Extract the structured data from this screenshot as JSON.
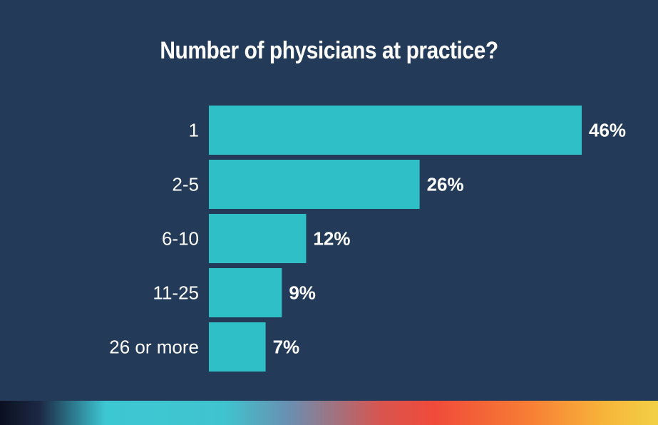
{
  "chart_data": {
    "type": "bar",
    "orientation": "horizontal",
    "title": "Number of physicians at practice?",
    "categories": [
      "1",
      "2-5",
      "6-10",
      "11-25",
      "26 or more"
    ],
    "values": [
      46,
      26,
      12,
      9,
      7
    ],
    "value_labels": [
      "46%",
      "26%",
      "12%",
      "9%",
      "7%"
    ],
    "unit": "%",
    "xlim": [
      0,
      46
    ],
    "grid": false,
    "legend": "none",
    "colors": {
      "background": "#233b58",
      "bar": "#2fbfc6",
      "text": "#ffffff"
    }
  }
}
